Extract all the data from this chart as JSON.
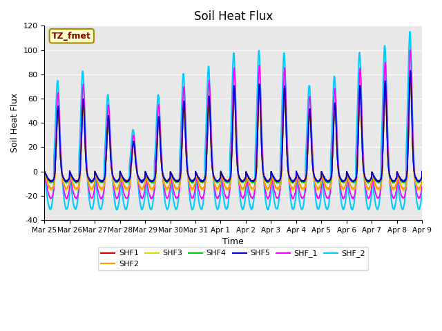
{
  "title": "Soil Heat Flux",
  "ylabel": "Soil Heat Flux",
  "xlabel": "Time",
  "ylim": [
    -40,
    120
  ],
  "bg_color": "#e8e8e8",
  "series_order": [
    "SHF1",
    "SHF2",
    "SHF3",
    "SHF4",
    "SHF5",
    "SHF_1",
    "SHF_2"
  ],
  "series": {
    "SHF1": {
      "color": "#dd0000",
      "lw": 1.2
    },
    "SHF2": {
      "color": "#ff9900",
      "lw": 1.2
    },
    "SHF3": {
      "color": "#dddd00",
      "lw": 1.2
    },
    "SHF4": {
      "color": "#00cc00",
      "lw": 1.2
    },
    "SHF5": {
      "color": "#0000dd",
      "lw": 1.2
    },
    "SHF_1": {
      "color": "#ff00ff",
      "lw": 1.2
    },
    "SHF_2": {
      "color": "#00ccff",
      "lw": 1.5
    }
  },
  "annotation_text": "TZ_fmet",
  "annotation_color": "#8B0000",
  "annotation_bg": "#ffffcc",
  "annotation_border": "#aa8800",
  "xtick_labels": [
    "Mar 25",
    "Mar 26",
    "Mar 27",
    "Mar 28",
    "Mar 29",
    "Mar 30",
    "Mar 31",
    "Apr 1",
    "Apr 2",
    "Apr 3",
    "Apr 4",
    "Apr 5",
    "Apr 6",
    "Apr 7",
    "Apr 8",
    "Apr 9"
  ],
  "ytick_labels": [
    -40,
    -20,
    0,
    20,
    40,
    60,
    80,
    100,
    120
  ],
  "n_days": 15,
  "pts_per_day": 144,
  "day_peaks": [
    65,
    72,
    55,
    30,
    55,
    70,
    75,
    85,
    87,
    85,
    62,
    68,
    85,
    90,
    100
  ],
  "shf1_scale": 0.82,
  "shf2_scale": 0.75,
  "shf3_scale": 0.78,
  "shf4_scale": 0.82,
  "shf5_scale": 0.83,
  "shf1_neg": -8,
  "shf2_neg": -14,
  "shf3_neg": -15,
  "shf4_neg": -9,
  "shf5_neg": -8,
  "shfm1_scale": 1.0,
  "shfm1_neg": -22,
  "shfm2_scale": 1.15,
  "shfm2_neg": -31
}
